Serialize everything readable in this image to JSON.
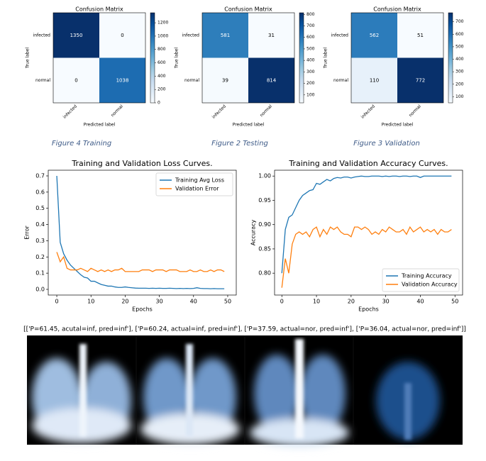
{
  "chart_data": [
    {
      "type": "heatmap",
      "title": "Confusion Matrix",
      "x_label": "Predicted label",
      "y_label": "True label",
      "x_categories": [
        "infected",
        "normal"
      ],
      "y_categories": [
        "infected",
        "normal"
      ],
      "values": [
        [
          1350,
          0
        ],
        [
          0,
          1038
        ]
      ],
      "colormap": "Blues",
      "zlim": [
        0,
        1350
      ],
      "zticks": [
        0,
        200,
        400,
        600,
        800,
        1000,
        1200
      ]
    },
    {
      "type": "heatmap",
      "title": "Confusion Matrix",
      "x_label": "Predicted label",
      "y_label": "True label",
      "x_categories": [
        "infected",
        "normal"
      ],
      "y_categories": [
        "infected",
        "normal"
      ],
      "values": [
        [
          581,
          31
        ],
        [
          39,
          814
        ]
      ],
      "colormap": "Blues",
      "zlim": [
        31,
        814
      ],
      "zticks": [
        100,
        200,
        300,
        400,
        500,
        600,
        700,
        800
      ]
    },
    {
      "type": "heatmap",
      "title": "Confusion Matrix",
      "x_label": "Predicted label",
      "y_label": "True label",
      "x_categories": [
        "infected",
        "normal"
      ],
      "y_categories": [
        "infected",
        "normal"
      ],
      "values": [
        [
          562,
          51
        ],
        [
          110,
          772
        ]
      ],
      "colormap": "Blues",
      "zlim": [
        51,
        772
      ],
      "zticks": [
        100,
        200,
        300,
        400,
        500,
        600,
        700
      ]
    },
    {
      "type": "line",
      "title": "Training and Validation Loss Curves.",
      "x_label": "Epochs",
      "y_label": "Error",
      "x": [
        0,
        1,
        2,
        3,
        4,
        5,
        6,
        7,
        8,
        9,
        10,
        11,
        12,
        13,
        14,
        15,
        16,
        17,
        18,
        19,
        20,
        21,
        22,
        23,
        24,
        25,
        26,
        27,
        28,
        29,
        30,
        31,
        32,
        33,
        34,
        35,
        36,
        37,
        38,
        39,
        40,
        41,
        42,
        43,
        44,
        45,
        46,
        47,
        48,
        49
      ],
      "series": [
        {
          "name": "Training Avg Loss",
          "color": "#1f77b4",
          "values": [
            0.7,
            0.29,
            0.22,
            0.18,
            0.15,
            0.13,
            0.11,
            0.09,
            0.075,
            0.07,
            0.05,
            0.05,
            0.04,
            0.03,
            0.025,
            0.02,
            0.02,
            0.015,
            0.012,
            0.012,
            0.015,
            0.012,
            0.01,
            0.008,
            0.007,
            0.007,
            0.007,
            0.006,
            0.007,
            0.006,
            0.007,
            0.006,
            0.006,
            0.007,
            0.006,
            0.005,
            0.006,
            0.005,
            0.006,
            0.005,
            0.006,
            0.01,
            0.006,
            0.005,
            0.005,
            0.004,
            0.005,
            0.004,
            0.004,
            0.004
          ]
        },
        {
          "name": "Validation Error",
          "color": "#ff7f0e",
          "values": [
            0.23,
            0.17,
            0.2,
            0.13,
            0.12,
            0.12,
            0.12,
            0.13,
            0.12,
            0.11,
            0.13,
            0.12,
            0.11,
            0.12,
            0.11,
            0.12,
            0.11,
            0.12,
            0.12,
            0.13,
            0.11,
            0.11,
            0.11,
            0.11,
            0.11,
            0.12,
            0.12,
            0.12,
            0.11,
            0.12,
            0.12,
            0.12,
            0.11,
            0.12,
            0.12,
            0.12,
            0.11,
            0.11,
            0.11,
            0.12,
            0.11,
            0.11,
            0.12,
            0.11,
            0.11,
            0.12,
            0.11,
            0.12,
            0.12,
            0.11
          ]
        }
      ],
      "xlim": [
        -2.5,
        52.5
      ],
      "ylim": [
        -0.035,
        0.735
      ],
      "xticks": [
        0,
        10,
        20,
        30,
        40,
        50
      ],
      "yticks": [
        {
          "value": 0,
          "label": "0.0"
        },
        0.1,
        0.2,
        0.3,
        0.4,
        0.5,
        0.6,
        0.7
      ],
      "legend": "upper right"
    },
    {
      "type": "line",
      "title": "Training and Validation Accuracy Curves.",
      "x_label": "Epochs",
      "y_label": "Accuracy",
      "x": [
        0,
        1,
        2,
        3,
        4,
        5,
        6,
        7,
        8,
        9,
        10,
        11,
        12,
        13,
        14,
        15,
        16,
        17,
        18,
        19,
        20,
        21,
        22,
        23,
        24,
        25,
        26,
        27,
        28,
        29,
        30,
        31,
        32,
        33,
        34,
        35,
        36,
        37,
        38,
        39,
        40,
        41,
        42,
        43,
        44,
        45,
        46,
        47,
        48,
        49
      ],
      "series": [
        {
          "name": "Training Accuracy",
          "color": "#1f77b4",
          "values": [
            0.8,
            0.89,
            0.915,
            0.92,
            0.935,
            0.95,
            0.96,
            0.965,
            0.97,
            0.972,
            0.985,
            0.983,
            0.988,
            0.993,
            0.99,
            0.995,
            0.997,
            0.996,
            0.998,
            0.998,
            0.996,
            0.998,
            0.999,
            1.0,
            0.999,
            0.999,
            1.0,
            1.0,
            1.0,
            0.999,
            1.0,
            0.999,
            1.0,
            1.0,
            0.999,
            1.0,
            1.0,
            0.999,
            1.0,
            1.0,
            0.997,
            1.0,
            1.0,
            1.0,
            1.0,
            1.0,
            1.0,
            1.0,
            1.0,
            1.0
          ]
        },
        {
          "name": "Validation Accuracy",
          "color": "#ff7f0e",
          "values": [
            0.77,
            0.83,
            0.8,
            0.86,
            0.88,
            0.885,
            0.88,
            0.885,
            0.875,
            0.89,
            0.895,
            0.875,
            0.89,
            0.88,
            0.895,
            0.89,
            0.895,
            0.885,
            0.88,
            0.88,
            0.875,
            0.895,
            0.895,
            0.89,
            0.895,
            0.89,
            0.88,
            0.885,
            0.88,
            0.89,
            0.885,
            0.895,
            0.89,
            0.885,
            0.885,
            0.89,
            0.88,
            0.895,
            0.885,
            0.89,
            0.895,
            0.885,
            0.89,
            0.885,
            0.89,
            0.88,
            0.89,
            0.885,
            0.885,
            0.89
          ]
        }
      ],
      "xlim": [
        -2.1,
        52.2
      ],
      "ylim": [
        0.755,
        1.012
      ],
      "xticks": [
        0,
        10,
        20,
        30,
        40,
        50
      ],
      "yticks": [
        {
          "value": 0.8,
          "label": "0.80"
        },
        {
          "value": 0.85,
          "label": "0.85"
        },
        {
          "value": 0.9,
          "label": "0.90"
        },
        {
          "value": 0.95,
          "label": "0.95"
        },
        {
          "value": 1,
          "label": "1.00"
        }
      ],
      "legend": "lower right"
    }
  ],
  "captions": [
    "Figure 4 Training",
    "Figure 2 Testing",
    "Figure 3 Validation"
  ],
  "xray_caption": "[['P=61.45, acutal=inf, pred=inf'], ['P=60.24, actual=inf, pred=inf'], ['P=37.59, actual=nor, pred=inf'], ['P=36.04, actual=nor, pred=inf']]"
}
